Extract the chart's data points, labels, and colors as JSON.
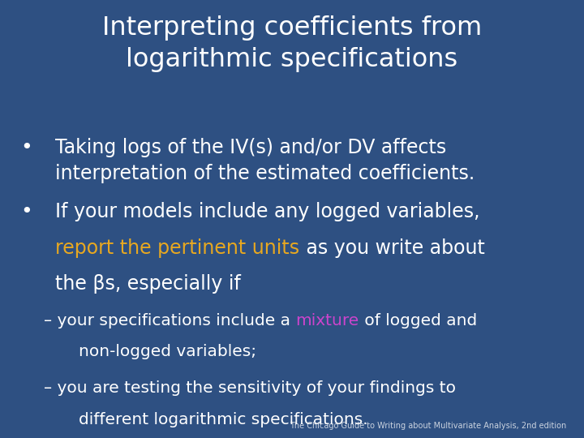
{
  "background_color": "#2e5082",
  "title_line1": "Interpreting coefficients from",
  "title_line2": "logarithmic specifications",
  "title_color": "#ffffff",
  "title_fontsize": 23,
  "bullet1_line1": "Taking logs of the IV(s) and/or DV affects",
  "bullet1_line2": "interpretation of the estimated coefficients.",
  "bullet2_line1": "If your models include any logged variables,",
  "bullet2_highlighted": "report the pertinent units",
  "bullet2_highlight_color": "#e8a820",
  "bullet2_line2_after": " as you write about",
  "bullet2_line3": "the βs, especially if",
  "sub1_prefix": "– your specifications include a ",
  "sub1_highlighted": "mixture",
  "sub1_highlight_color": "#cc44cc",
  "sub1_suffix": " of logged and",
  "sub1_line2": "non-logged variables;",
  "sub2_line1": "– you are testing the sensitivity of your findings to",
  "sub2_line2": "different logarithmic specifications.",
  "footer": "The Chicago Guide to Writing about Multivariate Analysis, 2nd edition",
  "text_color": "#ffffff",
  "bullet_fontsize": 17,
  "sub_fontsize": 14.5,
  "footer_fontsize": 7
}
